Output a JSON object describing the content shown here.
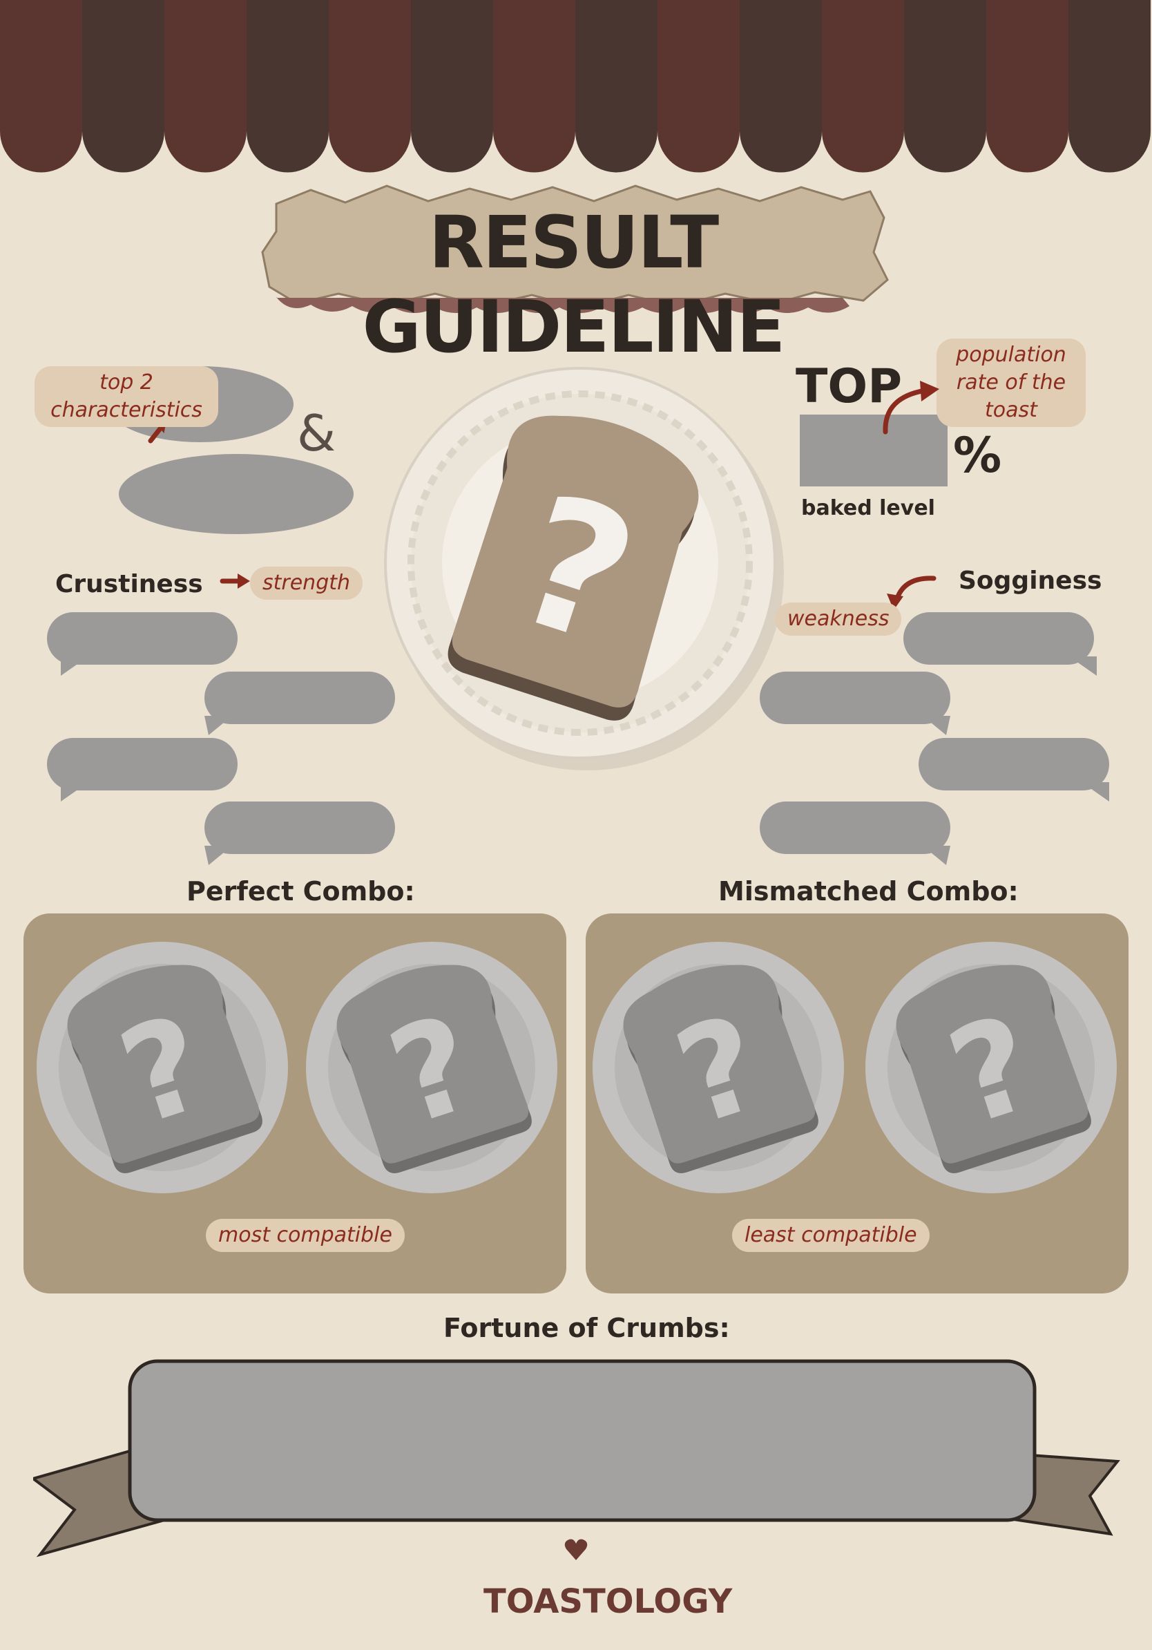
{
  "title": "RESULT GUIDELINE",
  "colors": {
    "background": "#ebe2d2",
    "awning_dark": "#4a3630",
    "awning_red": "#5b3631",
    "placeholder_gray": "#9b9a99",
    "note_text": "#8a2b1e",
    "note_bg": "#e1cdb4",
    "panel": "#ac9a7f"
  },
  "top_left": {
    "note": "top 2 characteristics",
    "ampersand": "&"
  },
  "top_right": {
    "top_label": "TOP",
    "percent": "%",
    "note": "population rate of the toast",
    "baked_level": "baked level"
  },
  "center_toast": {
    "icon": "toast-question-icon",
    "symbol": "?"
  },
  "left_column": {
    "heading": "Crustiness",
    "note": "strength"
  },
  "right_column": {
    "heading": "Sogginess",
    "note": "weakness"
  },
  "combos": {
    "perfect": {
      "heading": "Perfect Combo:",
      "note": "most compatible"
    },
    "mismatched": {
      "heading": "Mismatched Combo:",
      "note": "least compatible"
    }
  },
  "fortune": {
    "heading": "Fortune of Crumbs:"
  },
  "footer": {
    "logo": "TOASTOLOGY",
    "heart_icon": "heart-icon"
  }
}
